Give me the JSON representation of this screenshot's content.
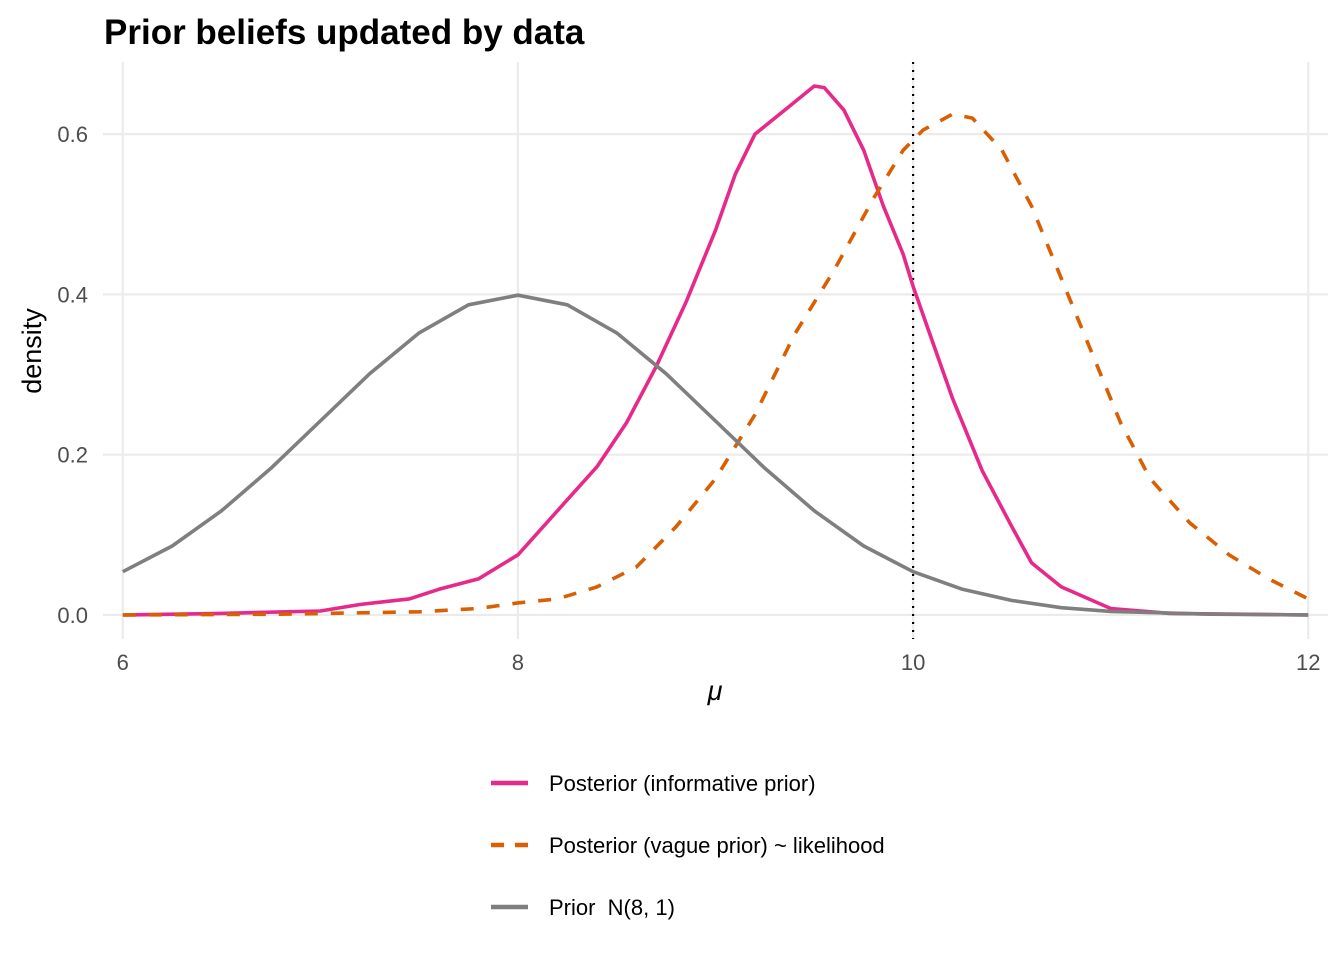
{
  "chart_data": {
    "type": "line",
    "title": "Prior beliefs updated by data",
    "xlabel": "μ",
    "ylabel": "density",
    "xlim": [
      5.9,
      12.1
    ],
    "ylim": [
      -0.03,
      0.69
    ],
    "x_ticks": [
      6,
      8,
      10,
      12
    ],
    "x_tick_labels": [
      "6",
      "8",
      "10",
      "12"
    ],
    "y_ticks": [
      0.0,
      0.2,
      0.4,
      0.6
    ],
    "y_tick_labels": [
      "0.0",
      "0.2",
      "0.4",
      "0.6"
    ],
    "grid": true,
    "legend_position": "bottom",
    "reference_line": {
      "x": 10,
      "style": "dotted",
      "color": "#000000"
    },
    "series": [
      {
        "name": "Posterior (informative prior)",
        "color": "#e7298a",
        "dash": "solid",
        "points": [
          [
            6.0,
            0.0
          ],
          [
            6.5,
            0.002
          ],
          [
            7.0,
            0.005
          ],
          [
            7.2,
            0.013
          ],
          [
            7.45,
            0.02
          ],
          [
            7.6,
            0.032
          ],
          [
            7.8,
            0.045
          ],
          [
            8.0,
            0.075
          ],
          [
            8.2,
            0.13
          ],
          [
            8.4,
            0.185
          ],
          [
            8.55,
            0.24
          ],
          [
            8.7,
            0.31
          ],
          [
            8.85,
            0.39
          ],
          [
            9.0,
            0.48
          ],
          [
            9.1,
            0.55
          ],
          [
            9.2,
            0.6
          ],
          [
            9.35,
            0.63
          ],
          [
            9.5,
            0.66
          ],
          [
            9.55,
            0.658
          ],
          [
            9.65,
            0.63
          ],
          [
            9.75,
            0.58
          ],
          [
            9.85,
            0.51
          ],
          [
            9.95,
            0.45
          ],
          [
            10.0,
            0.41
          ],
          [
            10.1,
            0.34
          ],
          [
            10.2,
            0.27
          ],
          [
            10.35,
            0.18
          ],
          [
            10.5,
            0.11
          ],
          [
            10.6,
            0.065
          ],
          [
            10.75,
            0.035
          ],
          [
            11.0,
            0.008
          ],
          [
            11.3,
            0.002
          ],
          [
            12.0,
            0.0
          ]
        ]
      },
      {
        "name": "Posterior (vague prior) ~ likelihood",
        "color": "#d95f02",
        "dash": "dashed",
        "points": [
          [
            6.0,
            0.0
          ],
          [
            6.8,
            0.001
          ],
          [
            7.5,
            0.004
          ],
          [
            7.8,
            0.008
          ],
          [
            8.0,
            0.015
          ],
          [
            8.2,
            0.02
          ],
          [
            8.4,
            0.035
          ],
          [
            8.6,
            0.06
          ],
          [
            8.8,
            0.11
          ],
          [
            9.0,
            0.17
          ],
          [
            9.2,
            0.25
          ],
          [
            9.4,
            0.35
          ],
          [
            9.6,
            0.43
          ],
          [
            9.8,
            0.52
          ],
          [
            9.95,
            0.58
          ],
          [
            10.05,
            0.605
          ],
          [
            10.2,
            0.625
          ],
          [
            10.3,
            0.62
          ],
          [
            10.45,
            0.58
          ],
          [
            10.6,
            0.51
          ],
          [
            10.75,
            0.42
          ],
          [
            10.9,
            0.33
          ],
          [
            11.05,
            0.24
          ],
          [
            11.2,
            0.17
          ],
          [
            11.4,
            0.115
          ],
          [
            11.6,
            0.075
          ],
          [
            11.8,
            0.045
          ],
          [
            12.0,
            0.02
          ]
        ]
      },
      {
        "name": "Prior  N(8, 1)",
        "color": "#7f7f7f",
        "dash": "solid",
        "points": [
          [
            6.0,
            0.054
          ],
          [
            6.25,
            0.086
          ],
          [
            6.5,
            0.13
          ],
          [
            6.75,
            0.183
          ],
          [
            7.0,
            0.242
          ],
          [
            7.25,
            0.301
          ],
          [
            7.5,
            0.352
          ],
          [
            7.75,
            0.387
          ],
          [
            8.0,
            0.399
          ],
          [
            8.25,
            0.387
          ],
          [
            8.5,
            0.352
          ],
          [
            8.75,
            0.301
          ],
          [
            9.0,
            0.242
          ],
          [
            9.25,
            0.183
          ],
          [
            9.5,
            0.13
          ],
          [
            9.75,
            0.086
          ],
          [
            10.0,
            0.054
          ],
          [
            10.25,
            0.032
          ],
          [
            10.5,
            0.018
          ],
          [
            10.75,
            0.009
          ],
          [
            11.0,
            0.0044
          ],
          [
            11.5,
            0.0009
          ],
          [
            12.0,
            0.0001
          ]
        ]
      }
    ]
  }
}
